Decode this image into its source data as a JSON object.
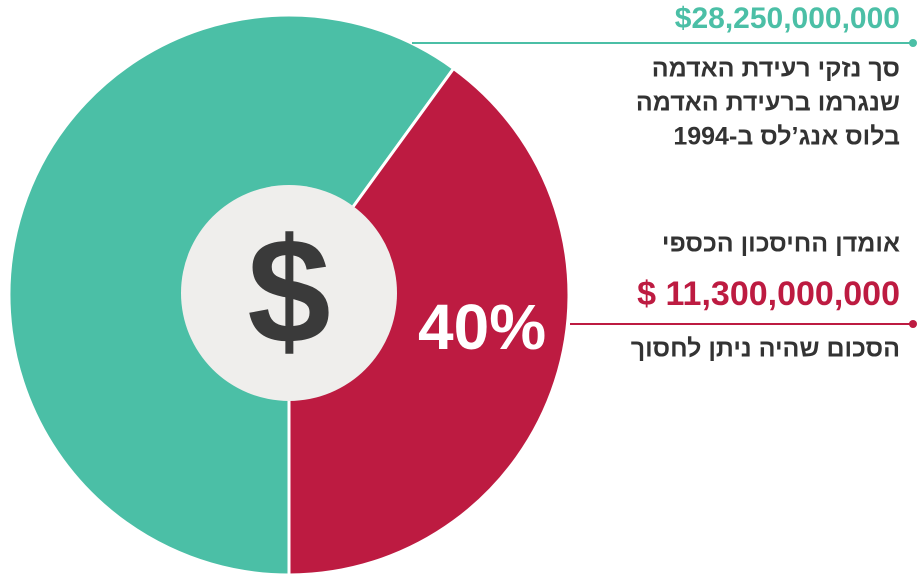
{
  "chart_data": {
    "type": "pie",
    "values": [
      60,
      40
    ],
    "colors": [
      "#4bbfa6",
      "#bd1b41"
    ],
    "value_labels": [
      null,
      "40%"
    ],
    "center_label": "$",
    "annotations": [
      {
        "amount": "$28,250,000,000",
        "color": "#4bbfa6",
        "lines": [
          "סך נזקי רעידת האדמה",
          "שנגרמו ברעידת האדמה",
          "בלוס אנג’לס ב-1994"
        ]
      },
      {
        "heading": "אומדן החיסכון הכספי",
        "amount": "$ 11,300,000,000",
        "color": "#bd1b41",
        "lines": [
          "הסכום שהיה ניתן לחסוך"
        ]
      }
    ]
  }
}
